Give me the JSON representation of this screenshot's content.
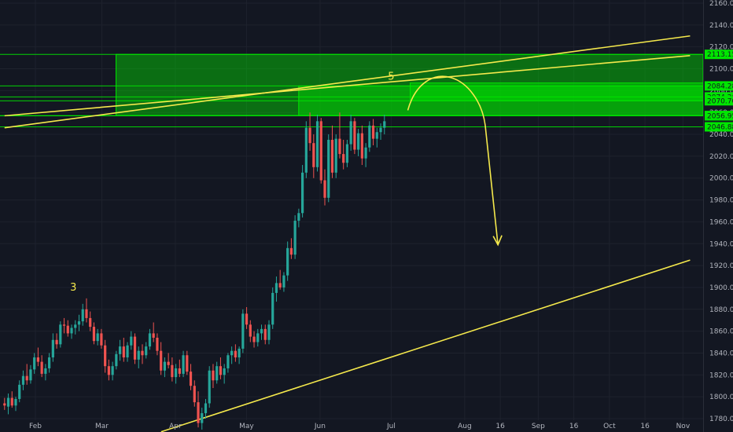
{
  "chart_data": {
    "type": "candlestick",
    "title": "",
    "xlabel": "",
    "ylabel": "",
    "ylim": [
      1770,
      2160
    ],
    "y_ticks": [
      1780,
      1800,
      1820,
      1840,
      1860,
      1880,
      1900,
      1920,
      1940,
      1960,
      1980,
      2000,
      2020,
      2040,
      2060,
      2080,
      2100,
      2120,
      2140,
      2160
    ],
    "x_ticks": [
      {
        "label": "Feb",
        "day": 0
      },
      {
        "label": "Mar",
        "day": 28
      },
      {
        "label": "Apr",
        "day": 59
      },
      {
        "label": "May",
        "day": 89
      },
      {
        "label": "Jun",
        "day": 120
      },
      {
        "label": "Jul",
        "day": 150
      },
      {
        "label": "Aug",
        "day": 181
      },
      {
        "label": "16",
        "day": 196
      },
      {
        "label": "Sep",
        "day": 212
      },
      {
        "label": "16",
        "day": 227
      },
      {
        "label": "Oct",
        "day": 242
      },
      {
        "label": "16",
        "day": 257
      },
      {
        "label": "Nov",
        "day": 273
      }
    ],
    "grid": true,
    "colors": {
      "up": "#26a69a",
      "down": "#ef5350",
      "zone": "#00e600",
      "line": "#f5e94c",
      "background": "#131722",
      "grid": "#1e222d",
      "axis_text": "#b2b5be"
    },
    "price_levels": [
      "2113.15",
      "2084.28",
      "2074.26",
      "2070.70",
      "2057.23",
      "2056.95",
      "2046.88"
    ],
    "price_values": [
      2113.15,
      2084.28,
      2074.26,
      2070.7,
      2057.23,
      2056.95,
      2046.88
    ],
    "zones": [
      {
        "from_day": 34,
        "top": 2113.15,
        "bottom": 2057.23
      },
      {
        "from_day": 111,
        "top": 2084.28,
        "bottom": 2057.23
      },
      {
        "from_day": 158,
        "top": 2087,
        "bottom": 2070.7
      }
    ],
    "trendlines": [
      {
        "from": [
          -13,
          2046
        ],
        "to": [
          276,
          2130
        ]
      },
      {
        "from": [
          -13,
          2057
        ],
        "to": [
          276,
          2112
        ]
      },
      {
        "from": [
          53,
          1768
        ],
        "to": [
          276,
          1925
        ]
      }
    ],
    "annotations": [
      {
        "text": "3",
        "day": 16,
        "price": 1897
      },
      {
        "text": "5",
        "day": 150,
        "price": 2090
      }
    ],
    "projection": [
      [
        157,
        2062
      ],
      [
        175,
        2092
      ],
      [
        185,
        2077
      ],
      [
        195,
        1939
      ]
    ],
    "candle_start_day": -13,
    "candles": [
      [
        1794,
        1799,
        1788,
        1792
      ],
      [
        1791,
        1803,
        1784,
        1799
      ],
      [
        1799,
        1805,
        1790,
        1792
      ],
      [
        1792,
        1800,
        1787,
        1798
      ],
      [
        1798,
        1815,
        1795,
        1811
      ],
      [
        1811,
        1824,
        1806,
        1819
      ],
      [
        1819,
        1830,
        1811,
        1815
      ],
      [
        1815,
        1829,
        1812,
        1825
      ],
      [
        1825,
        1840,
        1821,
        1836
      ],
      [
        1836,
        1845,
        1828,
        1832
      ],
      [
        1832,
        1838,
        1818,
        1821
      ],
      [
        1821,
        1830,
        1815,
        1826
      ],
      [
        1826,
        1840,
        1822,
        1836
      ],
      [
        1836,
        1858,
        1832,
        1852
      ],
      [
        1852,
        1858,
        1844,
        1848
      ],
      [
        1848,
        1869,
        1845,
        1866
      ],
      [
        1866,
        1872,
        1858,
        1865
      ],
      [
        1865,
        1870,
        1855,
        1858
      ],
      [
        1858,
        1866,
        1853,
        1863
      ],
      [
        1863,
        1870,
        1857,
        1866
      ],
      [
        1866,
        1875,
        1860,
        1869
      ],
      [
        1869,
        1885,
        1865,
        1880
      ],
      [
        1880,
        1890,
        1868,
        1872
      ],
      [
        1872,
        1878,
        1860,
        1864
      ],
      [
        1864,
        1868,
        1848,
        1851
      ],
      [
        1851,
        1862,
        1847,
        1858
      ],
      [
        1858,
        1862,
        1844,
        1847
      ],
      [
        1847,
        1852,
        1822,
        1828
      ],
      [
        1828,
        1834,
        1815,
        1820
      ],
      [
        1820,
        1832,
        1815,
        1828
      ],
      [
        1828,
        1842,
        1825,
        1839
      ],
      [
        1839,
        1852,
        1833,
        1846
      ],
      [
        1846,
        1854,
        1832,
        1836
      ],
      [
        1836,
        1850,
        1832,
        1847
      ],
      [
        1847,
        1860,
        1843,
        1855
      ],
      [
        1855,
        1858,
        1830,
        1834
      ],
      [
        1834,
        1846,
        1826,
        1842
      ],
      [
        1842,
        1848,
        1830,
        1838
      ],
      [
        1838,
        1850,
        1835,
        1846
      ],
      [
        1846,
        1862,
        1843,
        1858
      ],
      [
        1858,
        1868,
        1850,
        1854
      ],
      [
        1854,
        1858,
        1838,
        1842
      ],
      [
        1842,
        1850,
        1820,
        1824
      ],
      [
        1824,
        1836,
        1818,
        1832
      ],
      [
        1832,
        1840,
        1826,
        1829
      ],
      [
        1829,
        1836,
        1814,
        1818
      ],
      [
        1818,
        1830,
        1812,
        1826
      ],
      [
        1826,
        1834,
        1818,
        1821
      ],
      [
        1821,
        1842,
        1818,
        1838
      ],
      [
        1838,
        1842,
        1820,
        1823
      ],
      [
        1823,
        1830,
        1806,
        1810
      ],
      [
        1810,
        1815,
        1791,
        1795
      ],
      [
        1795,
        1805,
        1772,
        1776
      ],
      [
        1776,
        1790,
        1770,
        1785
      ],
      [
        1785,
        1798,
        1780,
        1794
      ],
      [
        1794,
        1828,
        1790,
        1824
      ],
      [
        1824,
        1830,
        1808,
        1815
      ],
      [
        1815,
        1832,
        1812,
        1828
      ],
      [
        1828,
        1836,
        1816,
        1820
      ],
      [
        1820,
        1830,
        1812,
        1826
      ],
      [
        1826,
        1840,
        1822,
        1838
      ],
      [
        1838,
        1846,
        1830,
        1842
      ],
      [
        1842,
        1848,
        1832,
        1836
      ],
      [
        1836,
        1846,
        1830,
        1844
      ],
      [
        1844,
        1880,
        1840,
        1876
      ],
      [
        1876,
        1882,
        1862,
        1866
      ],
      [
        1866,
        1870,
        1850,
        1855
      ],
      [
        1855,
        1860,
        1845,
        1850
      ],
      [
        1850,
        1862,
        1846,
        1858
      ],
      [
        1858,
        1866,
        1852,
        1862
      ],
      [
        1862,
        1866,
        1848,
        1852
      ],
      [
        1852,
        1870,
        1848,
        1866
      ],
      [
        1866,
        1900,
        1862,
        1895
      ],
      [
        1895,
        1910,
        1887,
        1904
      ],
      [
        1904,
        1916,
        1898,
        1900
      ],
      [
        1900,
        1914,
        1896,
        1911
      ],
      [
        1911,
        1942,
        1906,
        1936
      ],
      [
        1936,
        1945,
        1926,
        1930
      ],
      [
        1930,
        1966,
        1926,
        1961
      ],
      [
        1961,
        1972,
        1955,
        1968
      ],
      [
        1968,
        2012,
        1964,
        2005
      ],
      [
        2005,
        2052,
        2000,
        2046
      ],
      [
        2046,
        2060,
        2025,
        2032
      ],
      [
        2032,
        2040,
        2000,
        2010
      ],
      [
        2010,
        2058,
        2006,
        2052
      ],
      [
        2052,
        2055,
        1995,
        1998
      ],
      [
        1998,
        2008,
        1975,
        1982
      ],
      [
        1982,
        2040,
        1978,
        2035
      ],
      [
        2035,
        2048,
        2000,
        2005
      ],
      [
        2005,
        2040,
        2000,
        2036
      ],
      [
        2036,
        2060,
        2018,
        2022
      ],
      [
        2022,
        2035,
        2008,
        2014
      ],
      [
        2014,
        2035,
        2010,
        2031
      ],
      [
        2031,
        2058,
        2025,
        2052
      ],
      [
        2052,
        2055,
        2022,
        2026
      ],
      [
        2026,
        2045,
        2020,
        2041
      ],
      [
        2041,
        2048,
        2012,
        2018
      ],
      [
        2018,
        2032,
        2010,
        2028
      ],
      [
        2028,
        2052,
        2024,
        2048
      ],
      [
        2048,
        2054,
        2030,
        2036
      ],
      [
        2036,
        2046,
        2028,
        2042
      ],
      [
        2042,
        2050,
        2035,
        2046
      ],
      [
        2046,
        2058,
        2040,
        2052
      ]
    ]
  }
}
